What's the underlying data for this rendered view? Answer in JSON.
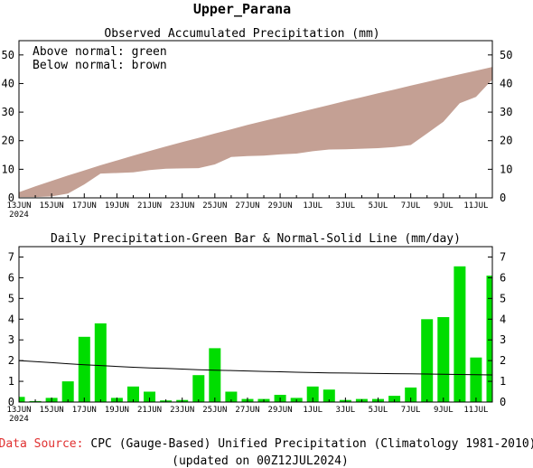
{
  "page": {
    "title": "Upper_Parana",
    "source_label": "Data Source:",
    "source_text": "CPC (Gauge-Based) Unified Precipitation (Climatology 1981-2010)",
    "updated": "(updated on 00Z12JUL2024)",
    "source_label_color": "#e03030"
  },
  "chart_data": [
    {
      "type": "area",
      "title": "Observed Accumulated Precipitation (mm)",
      "legend": [
        "Above normal: green",
        "Below normal: brown"
      ],
      "fill_color_below": "#c4a094",
      "fill_color_above": "#33cc33",
      "ylim": [
        0,
        55
      ],
      "yticks": [
        0,
        10,
        20,
        30,
        40,
        50
      ],
      "x_tick_labels": [
        "13JUN",
        "15JUN",
        "17JUN",
        "19JUN",
        "21JUN",
        "23JUN",
        "25JUN",
        "27JUN",
        "29JUN",
        "1JUL",
        "3JUL",
        "5JUL",
        "7JUL",
        "9JUL",
        "11JUL"
      ],
      "x_year_label": "2024",
      "days": [
        "13JUN",
        "14JUN",
        "15JUN",
        "16JUN",
        "17JUN",
        "18JUN",
        "19JUN",
        "20JUN",
        "21JUN",
        "22JUN",
        "23JUN",
        "24JUN",
        "25JUN",
        "26JUN",
        "27JUN",
        "28JUN",
        "29JUN",
        "30JUN",
        "1JUL",
        "2JUL",
        "3JUL",
        "4JUL",
        "5JUL",
        "6JUL",
        "7JUL",
        "8JUL",
        "9JUL",
        "10JUL",
        "11JUL",
        "12JUL"
      ],
      "normal": [
        2.0,
        4.0,
        5.9,
        7.8,
        9.6,
        11.4,
        13.1,
        14.8,
        16.4,
        18.0,
        19.5,
        21.0,
        22.5,
        24.0,
        25.5,
        26.9,
        28.3,
        29.7,
        31.1,
        32.5,
        33.9,
        35.2,
        36.6,
        37.9,
        39.3,
        40.6,
        41.9,
        43.2,
        44.5,
        45.8
      ],
      "observed": [
        0.3,
        0.3,
        0.5,
        1.5,
        4.7,
        8.5,
        8.7,
        8.9,
        9.7,
        10.2,
        10.3,
        10.4,
        11.7,
        14.3,
        14.6,
        14.8,
        15.2,
        15.5,
        16.3,
        16.9,
        17.0,
        17.2,
        17.4,
        17.8,
        18.5,
        22.5,
        26.6,
        33.1,
        35.3,
        41.4
      ]
    },
    {
      "type": "bar",
      "title": "Daily Precipitation-Green Bar & Normal-Solid Line (mm/day)",
      "bar_color": "#00dd00",
      "line_color": "#000000",
      "ylim": [
        0,
        7.5
      ],
      "yticks": [
        0,
        1,
        2,
        3,
        4,
        5,
        6,
        7
      ],
      "x_tick_labels": [
        "13JUN",
        "15JUN",
        "17JUN",
        "19JUN",
        "21JUN",
        "23JUN",
        "25JUN",
        "27JUN",
        "29JUN",
        "1JUL",
        "3JUL",
        "5JUL",
        "7JUL",
        "9JUL",
        "11JUL"
      ],
      "x_year_label": "2024",
      "days": [
        "13JUN",
        "14JUN",
        "15JUN",
        "16JUN",
        "17JUN",
        "18JUN",
        "19JUN",
        "20JUN",
        "21JUN",
        "22JUN",
        "23JUN",
        "24JUN",
        "25JUN",
        "26JUN",
        "27JUN",
        "28JUN",
        "29JUN",
        "30JUN",
        "1JUL",
        "2JUL",
        "3JUL",
        "4JUL",
        "5JUL",
        "6JUL",
        "7JUL",
        "8JUL",
        "9JUL",
        "10JUL",
        "11JUL",
        "12JUL"
      ],
      "values": [
        0.25,
        0.05,
        0.2,
        1.0,
        3.15,
        3.8,
        0.2,
        0.75,
        0.5,
        0.08,
        0.1,
        1.3,
        2.6,
        0.5,
        0.15,
        0.15,
        0.35,
        0.2,
        0.75,
        0.6,
        0.1,
        0.15,
        0.15,
        0.3,
        0.7,
        4.0,
        4.1,
        6.55,
        2.15,
        6.1
      ],
      "normal_line": [
        2.0,
        1.95,
        1.9,
        1.85,
        1.8,
        1.76,
        1.72,
        1.68,
        1.65,
        1.62,
        1.59,
        1.56,
        1.54,
        1.52,
        1.5,
        1.48,
        1.46,
        1.44,
        1.42,
        1.41,
        1.4,
        1.39,
        1.38,
        1.37,
        1.36,
        1.35,
        1.34,
        1.33,
        1.32,
        1.31
      ]
    }
  ]
}
